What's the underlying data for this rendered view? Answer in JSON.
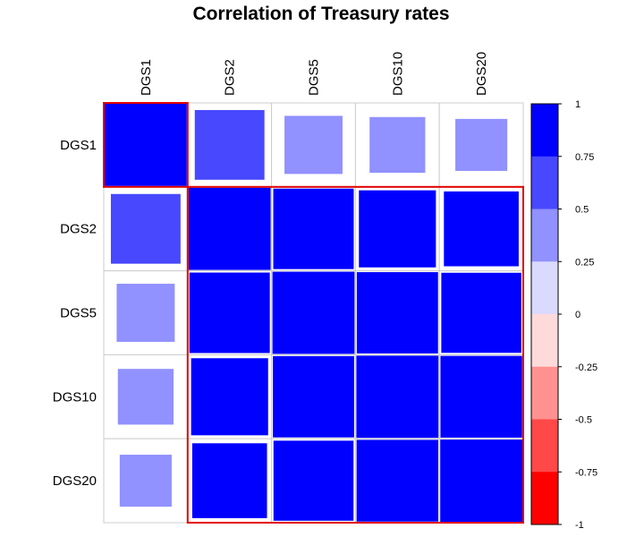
{
  "chart_data": {
    "type": "heatmap",
    "title": "Correlation of Treasury rates",
    "variables": [
      "DGS1",
      "DGS2",
      "DGS5",
      "DGS10",
      "DGS20"
    ],
    "matrix": [
      [
        1.0,
        0.72,
        0.5,
        0.46,
        0.4
      ],
      [
        0.72,
        1.0,
        0.96,
        0.88,
        0.83
      ],
      [
        0.5,
        0.96,
        1.0,
        0.98,
        0.95
      ],
      [
        0.46,
        0.88,
        0.98,
        1.0,
        0.99
      ],
      [
        0.4,
        0.83,
        0.95,
        0.99,
        1.0
      ]
    ],
    "method": "square",
    "value_range": [
      -1,
      1
    ],
    "clusters": [
      [
        "DGS1"
      ],
      [
        "DGS2",
        "DGS5",
        "DGS10",
        "DGS20"
      ]
    ],
    "cluster_rect_color": "#e00000",
    "colorbar": {
      "ticks": [
        "1",
        "0.75",
        "0.5",
        "0.25",
        "0",
        "-0.25",
        "-0.5",
        "-0.75",
        "-1"
      ],
      "colors": [
        "#0000ff",
        "#4848ff",
        "#9191ff",
        "#dadaff",
        "#ffdada",
        "#ff9191",
        "#ff4848",
        "#ff0000"
      ]
    },
    "legend": "right",
    "grid": true
  }
}
